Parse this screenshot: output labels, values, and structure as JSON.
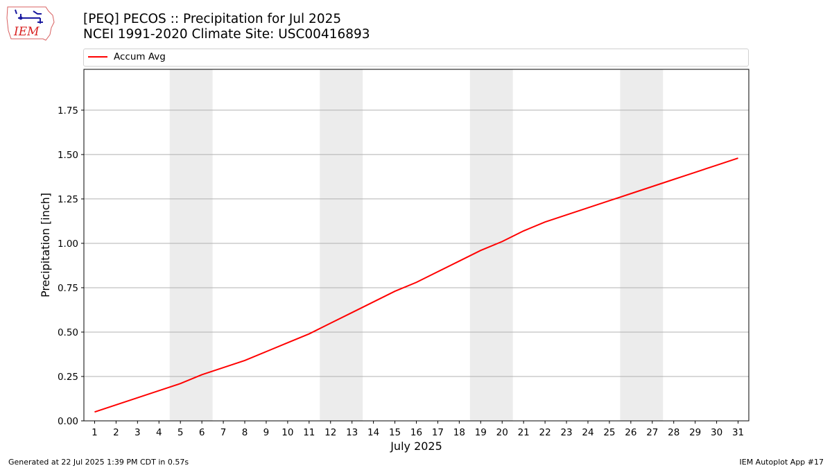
{
  "header": {
    "title_line1": "[PEQ] PECOS :: Precipitation for Jul 2025",
    "title_line2": "NCEI 1991-2020 Climate Site: USC00416893",
    "logo_text": "IEM"
  },
  "legend": {
    "entries": [
      {
        "label": "Accum Avg",
        "color": "#ff0000"
      }
    ]
  },
  "footer": {
    "left": "Generated at 22 Jul 2025 1:39 PM CDT in 0.57s",
    "right": "IEM Autoplot App #17"
  },
  "chart_data": {
    "type": "line",
    "xlabel": "July 2025",
    "ylabel": "Precipitation [inch]",
    "x": [
      1,
      2,
      3,
      4,
      5,
      6,
      7,
      8,
      9,
      10,
      11,
      12,
      13,
      14,
      15,
      16,
      17,
      18,
      19,
      20,
      21,
      22,
      23,
      24,
      25,
      26,
      27,
      28,
      29,
      30,
      31
    ],
    "xlim": [
      0.5,
      31.5
    ],
    "ylim": [
      0,
      1.98
    ],
    "yticks": [
      0.0,
      0.25,
      0.5,
      0.75,
      1.0,
      1.25,
      1.5,
      1.75
    ],
    "ytick_labels": [
      "0.00",
      "0.25",
      "0.50",
      "0.75",
      "1.00",
      "1.25",
      "1.50",
      "1.75"
    ],
    "grid": "horizontal",
    "weekend_bands": [
      [
        4.5,
        6.5
      ],
      [
        11.5,
        13.5
      ],
      [
        18.5,
        20.5
      ],
      [
        25.5,
        27.5
      ]
    ],
    "band_color": "#ececec",
    "series": [
      {
        "name": "Accum Avg",
        "color": "#ff0000",
        "values": [
          0.05,
          0.09,
          0.13,
          0.17,
          0.21,
          0.26,
          0.3,
          0.34,
          0.39,
          0.44,
          0.49,
          0.55,
          0.61,
          0.67,
          0.73,
          0.78,
          0.84,
          0.9,
          0.96,
          1.01,
          1.07,
          1.12,
          1.16,
          1.2,
          1.24,
          1.28,
          1.32,
          1.36,
          1.4,
          1.44,
          1.48
        ]
      }
    ]
  }
}
